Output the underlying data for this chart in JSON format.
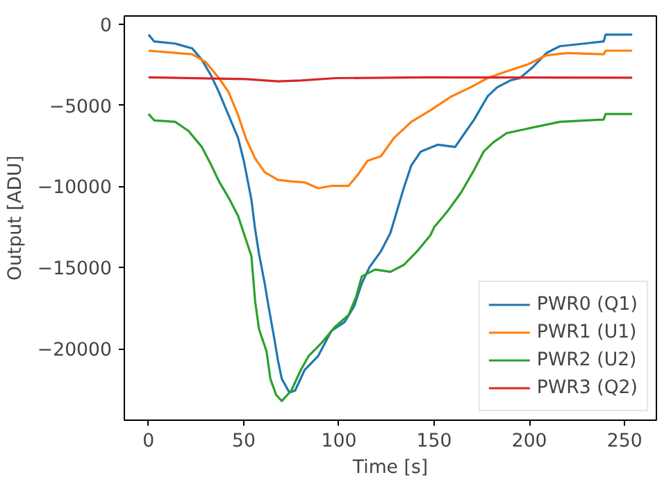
{
  "chart_data": {
    "type": "line",
    "xlabel": "Time [s]",
    "ylabel": "Output [ADU]",
    "xlim": [
      -12.7,
      266.7
    ],
    "ylim": [
      -24400,
      500
    ],
    "xticks": [
      0,
      50,
      100,
      150,
      200,
      250
    ],
    "yticks": [
      {
        "value": -20000,
        "label": "−20000"
      },
      {
        "value": -15000,
        "label": "−15000"
      },
      {
        "value": -10000,
        "label": "−10000"
      },
      {
        "value": -5000,
        "label": "−5000"
      },
      0
    ],
    "grid": false,
    "legend": "bottom right",
    "line_style": "solid",
    "marker": "none",
    "series": [
      {
        "name": "PWR0 (Q1)",
        "color": "#1f77b4",
        "x": [
          0,
          3,
          14,
          23,
          28,
          33,
          37,
          42,
          47,
          50,
          54,
          56,
          58,
          61,
          63,
          66,
          68,
          70,
          74,
          77,
          82,
          89,
          96,
          103,
          108,
          112,
          116,
          122,
          127,
          129,
          134,
          138,
          143,
          152,
          161,
          166,
          171,
          178,
          183,
          190,
          195,
          202,
          209,
          216,
          228,
          239,
          240,
          254
        ],
        "values": [
          -650,
          -1070,
          -1200,
          -1500,
          -2200,
          -3200,
          -4200,
          -5600,
          -7000,
          -8400,
          -10800,
          -12650,
          -14140,
          -15970,
          -17370,
          -19340,
          -20740,
          -21860,
          -22700,
          -22570,
          -21300,
          -20460,
          -18900,
          -18350,
          -17370,
          -15970,
          -14980,
          -14000,
          -12870,
          -12090,
          -10110,
          -8700,
          -7850,
          -7430,
          -7570,
          -6720,
          -5880,
          -4460,
          -3900,
          -3470,
          -3330,
          -2630,
          -1780,
          -1360,
          -1210,
          -1070,
          -650,
          -650
        ]
      },
      {
        "name": "PWR1 (U1)",
        "color": "#ff7f0e",
        "x": [
          0,
          23,
          30,
          37,
          42,
          47,
          51,
          56,
          61,
          68,
          75,
          82,
          89,
          96,
          105,
          110,
          115,
          122,
          129,
          138,
          148,
          159,
          169,
          178,
          188,
          199,
          209,
          220,
          239,
          240,
          254
        ],
        "values": [
          -1640,
          -1860,
          -2340,
          -3330,
          -4180,
          -5590,
          -7000,
          -8280,
          -9120,
          -9600,
          -9690,
          -9750,
          -10110,
          -9970,
          -9970,
          -9270,
          -8420,
          -8140,
          -7000,
          -6020,
          -5310,
          -4460,
          -3900,
          -3330,
          -2910,
          -2490,
          -1920,
          -1780,
          -1860,
          -1640,
          -1640
        ]
      },
      {
        "name": "PWR2 (U2)",
        "color": "#2ca02c",
        "x": [
          0,
          3,
          14,
          21,
          28,
          33,
          37,
          42,
          47,
          51,
          54,
          55,
          56,
          58,
          62,
          64,
          67,
          70,
          75,
          80,
          84,
          91,
          98,
          105,
          109,
          112,
          119,
          127,
          134,
          141,
          148,
          150,
          157,
          164,
          171,
          176,
          181,
          188,
          199,
          216,
          239,
          240,
          254
        ],
        "values": [
          -5540,
          -5930,
          -6020,
          -6580,
          -7570,
          -8700,
          -9690,
          -10680,
          -11810,
          -13220,
          -14280,
          -15680,
          -17090,
          -18770,
          -20180,
          -21860,
          -22840,
          -23220,
          -22570,
          -21300,
          -20460,
          -19620,
          -18640,
          -17930,
          -16810,
          -15540,
          -15120,
          -15260,
          -14840,
          -14000,
          -13010,
          -12510,
          -11530,
          -10400,
          -8980,
          -7850,
          -7290,
          -6720,
          -6440,
          -6020,
          -5880,
          -5540,
          -5540
        ]
      },
      {
        "name": "PWR3 (Q2)",
        "color": "#d62728",
        "x": [
          0,
          51,
          68,
          80,
          98,
          145,
          254
        ],
        "values": [
          -3280,
          -3390,
          -3530,
          -3470,
          -3330,
          -3280,
          -3300
        ]
      }
    ]
  }
}
